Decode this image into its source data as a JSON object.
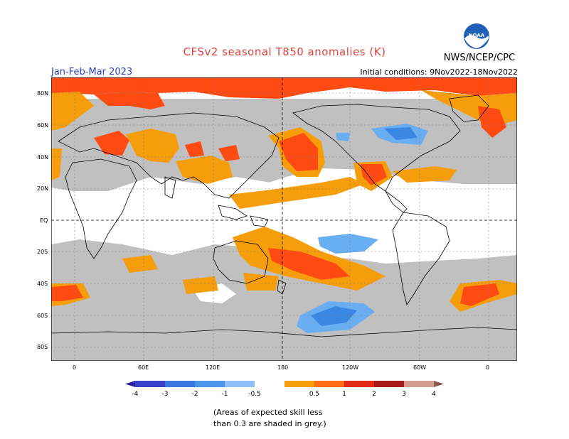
{
  "header": {
    "title": "CFSv2 seasonal T850 anomalies (K)",
    "season": "Jan-Feb-Mar 2023",
    "initial_conditions": "Initial conditions: 9Nov2022-18Nov2022",
    "agency": "NWS/NCEP/CPC",
    "logo_text": "NOAA"
  },
  "map": {
    "lat_labels": [
      "80N",
      "60N",
      "40N",
      "20N",
      "EQ",
      "20S",
      "40S",
      "60S",
      "80S"
    ],
    "lon_labels": [
      "0",
      "60E",
      "120E",
      "180",
      "120W",
      "60W",
      "0"
    ],
    "colors": {
      "grey_low_skill": "#c0c0c0",
      "cool_1": "#6aaef2",
      "cool_2": "#3a86e3",
      "warm_0_5": "#f59d0a",
      "warm_1": "#ff4a12",
      "warm_2": "#e12b17",
      "land_outline": "#000000"
    }
  },
  "colorbar": {
    "labels": [
      "-4",
      "-3",
      "-2",
      "-1",
      "-0.5",
      "0.5",
      "1",
      "2",
      "3",
      "4"
    ],
    "colors": [
      "#2b1fa3",
      "#3a3fc9",
      "#3b77e0",
      "#4c96ea",
      "#8ec0f5",
      "#ffffff",
      "#f59d0a",
      "#ff6a14",
      "#e12b17",
      "#a81a1a",
      "#d59a8e",
      "#8a5a52"
    ]
  },
  "caption": {
    "line1": "(Areas of expected skill less",
    "line2": "than 0.3 are shaded in grey.)"
  }
}
